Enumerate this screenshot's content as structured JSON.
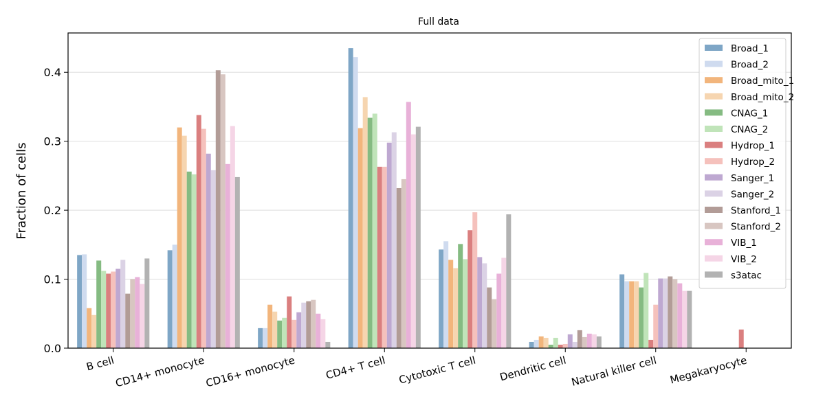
{
  "chart_data": {
    "type": "bar",
    "title": "Full data",
    "xlabel": "",
    "ylabel": "Fraction of cells",
    "ylim": [
      0,
      0.457
    ],
    "yticks": [
      0.0,
      0.1,
      0.2,
      0.3,
      0.4
    ],
    "ytick_labels": [
      "0.0",
      "0.1",
      "0.2",
      "0.3",
      "0.4"
    ],
    "grid": "horizontal",
    "legend_position": "top-right",
    "categories": [
      "B cell",
      "CD14+ monocyte",
      "CD16+ monocyte",
      "CD4+ T cell",
      "Cytotoxic T cell",
      "Dendritic cell",
      "Natural killer cell",
      "Megakaryocyte"
    ],
    "series": [
      {
        "name": "Broad_1",
        "color": "#7ea6c6",
        "values": [
          0.135,
          0.142,
          0.029,
          0.435,
          0.143,
          0.009,
          0.107,
          0.0
        ]
      },
      {
        "name": "Broad_2",
        "color": "#cfdbef",
        "values": [
          0.136,
          0.15,
          0.029,
          0.422,
          0.155,
          0.012,
          0.097,
          0.0
        ]
      },
      {
        "name": "Broad_mito_1",
        "color": "#f2b57c",
        "values": [
          0.058,
          0.32,
          0.063,
          0.319,
          0.128,
          0.017,
          0.097,
          0.0
        ]
      },
      {
        "name": "Broad_mito_2",
        "color": "#f6d5b0",
        "values": [
          0.048,
          0.308,
          0.053,
          0.364,
          0.116,
          0.015,
          0.097,
          0.0
        ]
      },
      {
        "name": "CNAG_1",
        "color": "#85bb82",
        "values": [
          0.127,
          0.256,
          0.04,
          0.334,
          0.151,
          0.005,
          0.088,
          0.0
        ]
      },
      {
        "name": "CNAG_2",
        "color": "#c0e4b9",
        "values": [
          0.112,
          0.252,
          0.044,
          0.34,
          0.129,
          0.015,
          0.109,
          0.0
        ]
      },
      {
        "name": "Hydrop_1",
        "color": "#da7f7f",
        "values": [
          0.108,
          0.338,
          0.075,
          0.263,
          0.171,
          0.005,
          0.012,
          0.027
        ]
      },
      {
        "name": "Hydrop_2",
        "color": "#f5c1bc",
        "values": [
          0.111,
          0.318,
          0.041,
          0.263,
          0.197,
          0.006,
          0.063,
          0.0
        ]
      },
      {
        "name": "Sanger_1",
        "color": "#bea8d1",
        "values": [
          0.115,
          0.282,
          0.052,
          0.298,
          0.132,
          0.02,
          0.101,
          0.0
        ]
      },
      {
        "name": "Sanger_2",
        "color": "#dbd2e5",
        "values": [
          0.128,
          0.258,
          0.066,
          0.313,
          0.123,
          0.009,
          0.101,
          0.0
        ]
      },
      {
        "name": "Stanford_1",
        "color": "#b29c97",
        "values": [
          0.079,
          0.403,
          0.068,
          0.232,
          0.088,
          0.026,
          0.104,
          0.0
        ]
      },
      {
        "name": "Stanford_2",
        "color": "#d8c6c1",
        "values": [
          0.1,
          0.397,
          0.07,
          0.245,
          0.071,
          0.016,
          0.1,
          0.0
        ]
      },
      {
        "name": "VIB_1",
        "color": "#e8b1d8",
        "values": [
          0.103,
          0.267,
          0.05,
          0.357,
          0.108,
          0.021,
          0.094,
          0.0
        ]
      },
      {
        "name": "VIB_2",
        "color": "#f5d5e6",
        "values": [
          0.093,
          0.322,
          0.042,
          0.31,
          0.131,
          0.02,
          0.083,
          0.0
        ]
      },
      {
        "name": "s3atac",
        "color": "#b2b2b2",
        "values": [
          0.13,
          0.248,
          0.009,
          0.321,
          0.194,
          0.017,
          0.083,
          0.0
        ]
      }
    ]
  }
}
